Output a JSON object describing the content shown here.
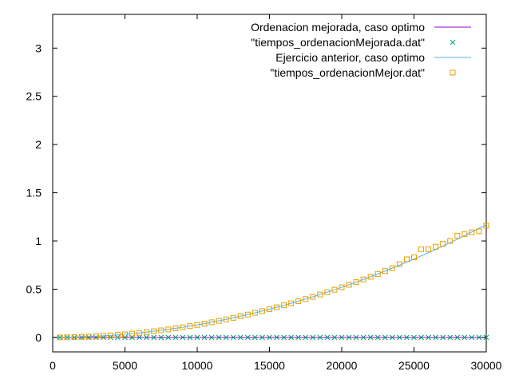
{
  "chart_data": {
    "type": "scatter",
    "title": "",
    "xlabel": "",
    "ylabel": "",
    "xlim": [
      0,
      30000
    ],
    "ylim": [
      -0.15,
      3.35
    ],
    "legend_position": "top-right",
    "grid": false,
    "x_ticks": [
      {
        "value": 0,
        "label": "0"
      },
      {
        "value": 5000,
        "label": "5000"
      },
      {
        "value": 10000,
        "label": "10000"
      },
      {
        "value": 15000,
        "label": "15000"
      },
      {
        "value": 20000,
        "label": "20000"
      },
      {
        "value": 25000,
        "label": "25000"
      },
      {
        "value": 30000,
        "label": "30000"
      }
    ],
    "y_ticks": [
      {
        "value": 0,
        "label": "0"
      },
      {
        "value": 0.5,
        "label": "0.5"
      },
      {
        "value": 1,
        "label": "1"
      },
      {
        "value": 1.5,
        "label": "1.5"
      },
      {
        "value": 2,
        "label": "2"
      },
      {
        "value": 2.5,
        "label": "2.5"
      },
      {
        "value": 3,
        "label": "3"
      }
    ],
    "series": [
      {
        "name": "Ordenacion mejorada, caso optimo",
        "style": "line",
        "color": "#9400d3",
        "x": [
          0,
          30000
        ],
        "y": [
          0.0,
          0.0
        ]
      },
      {
        "name": "\"tiempos_ordenacionMejorada.dat\"",
        "style": "points-x",
        "color": "#009e73",
        "x": [
          500,
          1000,
          1500,
          2000,
          2500,
          3000,
          3500,
          4000,
          4500,
          5000,
          5500,
          6000,
          6500,
          7000,
          7500,
          8000,
          8500,
          9000,
          9500,
          10000,
          10500,
          11000,
          11500,
          12000,
          12500,
          13000,
          13500,
          14000,
          14500,
          15000,
          15500,
          16000,
          16500,
          17000,
          17500,
          18000,
          18500,
          19000,
          19500,
          20000,
          20500,
          21000,
          21500,
          22000,
          22500,
          23000,
          23500,
          24000,
          24500,
          25000,
          25500,
          26000,
          26500,
          27000,
          27500,
          28000,
          28500,
          29000,
          29500,
          30000
        ],
        "y": [
          0.0,
          0.0,
          0.0,
          0.0,
          0.0,
          0.0,
          0.0,
          0.0,
          0.0,
          0.0,
          0.0,
          0.0,
          0.0,
          0.0,
          0.0,
          0.0,
          0.0,
          0.0,
          0.0,
          0.0,
          0.0,
          0.0,
          0.0,
          0.0,
          0.0,
          0.0,
          0.0,
          0.0,
          0.0,
          0.0,
          0.0,
          0.0,
          0.0,
          0.0,
          0.0,
          0.0,
          0.0,
          0.0,
          0.0,
          0.0,
          0.0,
          0.0,
          0.0,
          0.0,
          0.0,
          0.0,
          0.0,
          0.0,
          0.0,
          0.0,
          0.0,
          0.0,
          0.0,
          0.0,
          0.0,
          0.0,
          0.0,
          0.0,
          0.0,
          0.0
        ]
      },
      {
        "name": "Ejercicio anterior, caso optimo",
        "style": "line",
        "color": "#56b4e9",
        "x": [
          0,
          1500,
          3000,
          4500,
          6000,
          7500,
          9000,
          10500,
          12000,
          13500,
          15000,
          16500,
          18000,
          19500,
          21000,
          22500,
          24000,
          25500,
          27000,
          28500,
          30000
        ],
        "y": [
          0.0,
          0.003,
          0.012,
          0.026,
          0.047,
          0.073,
          0.105,
          0.143,
          0.187,
          0.237,
          0.292,
          0.354,
          0.421,
          0.494,
          0.573,
          0.658,
          0.749,
          0.845,
          0.947,
          1.055,
          1.169
        ]
      },
      {
        "name": "\"tiempos_ordenacionMejor.dat\"",
        "style": "points-square",
        "color": "#e69f00",
        "x": [
          500,
          1000,
          1500,
          2000,
          2500,
          3000,
          3500,
          4000,
          4500,
          5000,
          5500,
          6000,
          6500,
          7000,
          7500,
          8000,
          8500,
          9000,
          9500,
          10000,
          10500,
          11000,
          11500,
          12000,
          12500,
          13000,
          13500,
          14000,
          14500,
          15000,
          15500,
          16000,
          16500,
          17000,
          17500,
          18000,
          18500,
          19000,
          19500,
          20000,
          20500,
          21000,
          21500,
          22000,
          22500,
          23000,
          23500,
          24000,
          24500,
          25000,
          25500,
          26000,
          26500,
          27000,
          27500,
          28000,
          28500,
          29000,
          29500,
          30000
        ],
        "y": [
          0.0,
          0.001,
          0.003,
          0.005,
          0.008,
          0.012,
          0.016,
          0.021,
          0.026,
          0.032,
          0.039,
          0.047,
          0.055,
          0.064,
          0.073,
          0.083,
          0.094,
          0.105,
          0.117,
          0.13,
          0.143,
          0.157,
          0.172,
          0.187,
          0.203,
          0.22,
          0.237,
          0.255,
          0.273,
          0.292,
          0.312,
          0.333,
          0.354,
          0.376,
          0.398,
          0.421,
          0.445,
          0.469,
          0.494,
          0.52,
          0.546,
          0.573,
          0.601,
          0.629,
          0.658,
          0.688,
          0.718,
          0.76,
          0.81,
          0.83,
          0.915,
          0.915,
          0.94,
          0.97,
          1.0,
          1.055,
          1.07,
          1.09,
          1.1,
          1.16
        ]
      }
    ]
  }
}
